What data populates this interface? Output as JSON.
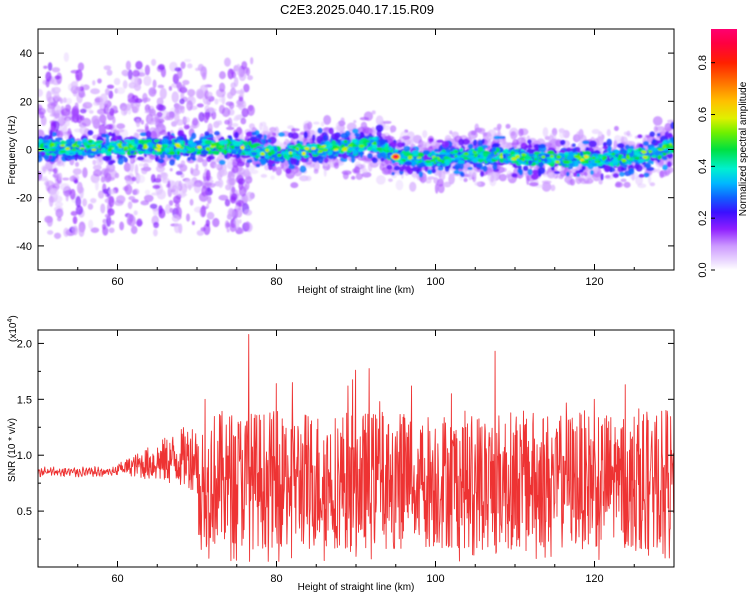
{
  "title": "C2E3.2025.040.17.15.R09",
  "chart_data": [
    {
      "type": "heatmap",
      "xlabel": "Height of straight line (km)",
      "ylabel": "Frequency (Hz)",
      "xlim": [
        50,
        130
      ],
      "ylim": [
        -50,
        50
      ],
      "xticks": [
        60,
        80,
        100,
        120
      ],
      "yticks": [
        -40,
        -20,
        0,
        20,
        40
      ],
      "colorbar": {
        "label": "Normalized spectral amplitude",
        "range": [
          0,
          0.93
        ],
        "ticks": [
          0.0,
          0.2,
          0.4,
          0.6,
          0.8
        ],
        "colormap": "rainbow (violet to red)"
      },
      "ridge": [
        [
          50,
          1
        ],
        [
          55,
          1
        ],
        [
          60,
          1
        ],
        [
          65,
          1
        ],
        [
          70,
          1
        ],
        [
          75,
          1
        ],
        [
          77,
          0
        ],
        [
          80,
          -2
        ],
        [
          85,
          0
        ],
        [
          90,
          1
        ],
        [
          92,
          3
        ],
        [
          95,
          -3
        ],
        [
          100,
          -4
        ],
        [
          105,
          -2
        ],
        [
          110,
          -3
        ],
        [
          115,
          -4
        ],
        [
          120,
          -4
        ],
        [
          125,
          -3
        ],
        [
          128,
          -1
        ],
        [
          130,
          2
        ]
      ],
      "peak": {
        "x": 95,
        "y": -3,
        "amplitude": 0.9
      }
    },
    {
      "type": "line",
      "xlabel": "Height of straight line (km)",
      "ylabel": "SNR (10 * v/v)",
      "yscale_label": "(x10",
      "yscale_exp": "4",
      "xlim": [
        50,
        130
      ],
      "ylim": [
        0.0,
        2.12
      ],
      "xticks": [
        60,
        80,
        100,
        120
      ],
      "yticks": [
        0.5,
        1.0,
        1.5,
        2.0
      ],
      "ytick_labels": [
        "0.5",
        "1.0",
        "1.5",
        "2.0"
      ],
      "line_color": "#ee3333",
      "series": [
        {
          "values_summary": "baseline ~0.85 from 50-60 km, growing oscillation to ~1.1 by 68 km, large fluctuations between ~0.05 and ~1.5 from 70-130 km",
          "peaks": [
            [
              76.5,
              2.08
            ],
            [
              107.5,
              1.93
            ],
            [
              82,
              1.65
            ],
            [
              89,
              1.62
            ],
            [
              97,
              1.62
            ],
            [
              93,
              1.48
            ],
            [
              71,
              1.5
            ],
            [
              102,
              1.55
            ],
            [
              120,
              1.5
            ],
            [
              129,
              1.4
            ]
          ]
        }
      ]
    }
  ]
}
